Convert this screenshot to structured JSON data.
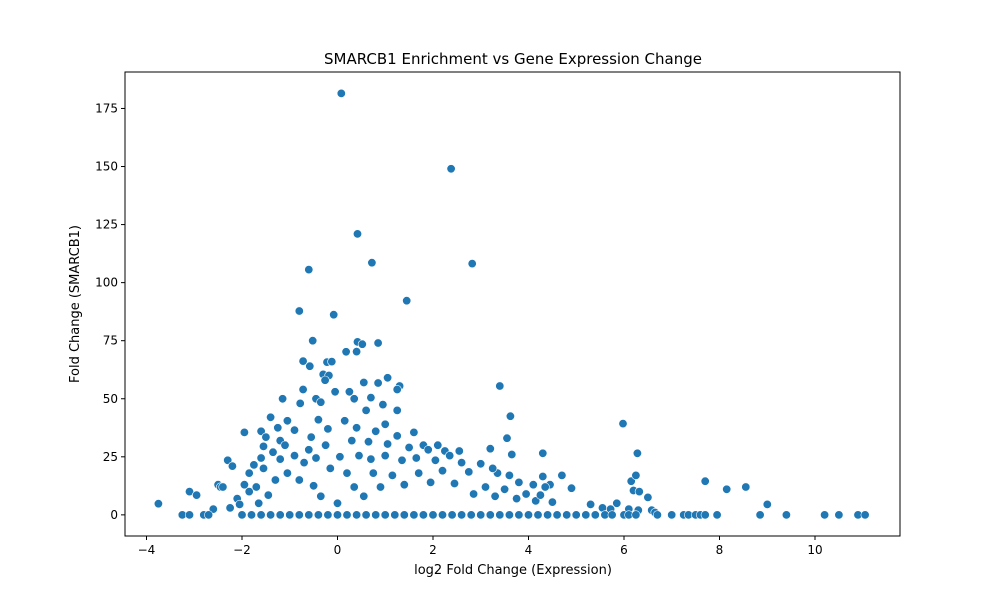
{
  "chart_data": {
    "type": "scatter",
    "title": "SMARCB1 Enrichment vs Gene Expression Change",
    "xlabel": "log2 Fold Change (Expression)",
    "ylabel": "Fold Change (SMARCB1)",
    "xlim": [
      -4.45,
      11.78
    ],
    "ylim": [
      -9.1,
      190.7
    ],
    "xticks": [
      -4,
      -2,
      0,
      2,
      4,
      6,
      8,
      10
    ],
    "yticks": [
      0,
      25,
      50,
      75,
      100,
      125,
      150,
      175
    ],
    "xtick_labels": [
      "−4",
      "−2",
      "0",
      "2",
      "4",
      "6",
      "8",
      "10"
    ],
    "ytick_labels": [
      "0",
      "25",
      "50",
      "75",
      "100",
      "125",
      "150",
      "175"
    ],
    "grid": false,
    "color": "#1f77b4",
    "series": [
      {
        "points": [
          [
            0.08,
            181.5
          ],
          [
            2.38,
            149.0
          ],
          [
            0.42,
            121.0
          ],
          [
            0.72,
            108.6
          ],
          [
            2.82,
            108.2
          ],
          [
            -0.6,
            105.6
          ],
          [
            1.45,
            92.2
          ],
          [
            -0.8,
            87.8
          ],
          [
            -0.08,
            86.2
          ],
          [
            -0.52,
            75.0
          ],
          [
            0.42,
            74.5
          ],
          [
            0.52,
            73.5
          ],
          [
            0.85,
            74.0
          ],
          [
            0.18,
            70.2
          ],
          [
            0.4,
            70.3
          ],
          [
            -0.72,
            66.2
          ],
          [
            -0.22,
            65.8
          ],
          [
            -0.58,
            64.0
          ],
          [
            -0.12,
            66.0
          ],
          [
            -0.3,
            60.5
          ],
          [
            -0.18,
            60.0
          ],
          [
            -0.26,
            58.0
          ],
          [
            0.55,
            57.0
          ],
          [
            0.85,
            56.8
          ],
          [
            1.3,
            55.5
          ],
          [
            1.25,
            54.0
          ],
          [
            3.4,
            55.5
          ],
          [
            -0.72,
            54.0
          ],
          [
            0.25,
            53.0
          ],
          [
            -0.05,
            53.0
          ],
          [
            0.35,
            50.0
          ],
          [
            0.7,
            50.5
          ],
          [
            1.05,
            59.0
          ],
          [
            -0.45,
            50.0
          ],
          [
            -1.15,
            50.0
          ],
          [
            -0.78,
            48.0
          ],
          [
            -0.35,
            48.5
          ],
          [
            0.95,
            47.5
          ],
          [
            0.6,
            45.0
          ],
          [
            1.25,
            45.0
          ],
          [
            3.62,
            42.5
          ],
          [
            -1.4,
            42.0
          ],
          [
            -1.05,
            40.5
          ],
          [
            -0.4,
            41.0
          ],
          [
            0.15,
            40.5
          ],
          [
            5.98,
            39.3
          ],
          [
            1.0,
            39.0
          ],
          [
            -1.25,
            37.5
          ],
          [
            -0.9,
            36.5
          ],
          [
            -1.6,
            36.0
          ],
          [
            -1.95,
            35.5
          ],
          [
            -0.2,
            37.0
          ],
          [
            0.4,
            37.5
          ],
          [
            0.8,
            36.0
          ],
          [
            1.6,
            35.5
          ],
          [
            1.25,
            34.0
          ],
          [
            1.8,
            30.0
          ],
          [
            2.1,
            30.0
          ],
          [
            3.55,
            33.0
          ],
          [
            3.2,
            28.5
          ],
          [
            6.28,
            26.5
          ],
          [
            -1.5,
            33.5
          ],
          [
            -1.2,
            32.0
          ],
          [
            -0.55,
            33.5
          ],
          [
            -1.1,
            30.0
          ],
          [
            -1.55,
            29.5
          ],
          [
            -1.35,
            27.0
          ],
          [
            -0.6,
            28.0
          ],
          [
            -0.25,
            30.0
          ],
          [
            0.3,
            32.0
          ],
          [
            0.65,
            31.5
          ],
          [
            1.05,
            30.5
          ],
          [
            1.5,
            29.0
          ],
          [
            1.9,
            28.0
          ],
          [
            2.25,
            27.5
          ],
          [
            2.55,
            27.5
          ],
          [
            3.65,
            26.0
          ],
          [
            4.3,
            26.5
          ],
          [
            -2.3,
            23.5
          ],
          [
            -2.2,
            21.0
          ],
          [
            -1.75,
            21.5
          ],
          [
            -1.6,
            24.5
          ],
          [
            -1.55,
            20.0
          ],
          [
            -1.85,
            18.0
          ],
          [
            -1.95,
            13.0
          ],
          [
            -1.2,
            24.0
          ],
          [
            -0.9,
            25.5
          ],
          [
            -0.7,
            22.5
          ],
          [
            -0.45,
            24.5
          ],
          [
            0.05,
            25.0
          ],
          [
            0.45,
            25.5
          ],
          [
            0.7,
            24.0
          ],
          [
            1.0,
            25.5
          ],
          [
            1.35,
            23.5
          ],
          [
            1.65,
            24.5
          ],
          [
            2.05,
            23.5
          ],
          [
            2.35,
            25.5
          ],
          [
            2.6,
            22.5
          ],
          [
            3.0,
            22.0
          ],
          [
            3.35,
            18.0
          ],
          [
            3.25,
            20.0
          ],
          [
            3.6,
            17.0
          ],
          [
            3.8,
            14.0
          ],
          [
            4.3,
            16.5
          ],
          [
            4.7,
            17.0
          ],
          [
            4.9,
            11.5
          ],
          [
            4.45,
            13.0
          ],
          [
            4.1,
            13.0
          ],
          [
            4.35,
            12.0
          ],
          [
            6.15,
            14.5
          ],
          [
            6.25,
            17.0
          ],
          [
            6.2,
            10.5
          ],
          [
            6.32,
            10.0
          ],
          [
            6.5,
            7.5
          ],
          [
            6.58,
            2.0
          ],
          [
            6.65,
            1.0
          ],
          [
            -3.75,
            4.8
          ],
          [
            -3.1,
            10.0
          ],
          [
            -2.95,
            8.5
          ],
          [
            -2.5,
            13.0
          ],
          [
            -2.45,
            12.0
          ],
          [
            -2.4,
            12.0
          ],
          [
            -2.1,
            7.0
          ],
          [
            -2.25,
            3.0
          ],
          [
            -2.6,
            2.5
          ],
          [
            -2.05,
            4.5
          ],
          [
            -1.85,
            10.0
          ],
          [
            -1.7,
            12.0
          ],
          [
            -1.45,
            8.5
          ],
          [
            -1.65,
            5.0
          ],
          [
            -1.3,
            15.0
          ],
          [
            -1.05,
            18.0
          ],
          [
            -0.8,
            15.0
          ],
          [
            -0.5,
            12.5
          ],
          [
            -0.35,
            8.0
          ],
          [
            -0.15,
            20.0
          ],
          [
            0.0,
            5.0
          ],
          [
            0.2,
            18.0
          ],
          [
            0.35,
            12.0
          ],
          [
            0.55,
            8.0
          ],
          [
            0.75,
            18.0
          ],
          [
            0.9,
            12.0
          ],
          [
            1.15,
            17.0
          ],
          [
            1.4,
            13.0
          ],
          [
            1.7,
            18.0
          ],
          [
            1.95,
            14.0
          ],
          [
            2.2,
            19.0
          ],
          [
            2.45,
            13.5
          ],
          [
            2.75,
            18.5
          ],
          [
            2.85,
            9.0
          ],
          [
            3.1,
            12.0
          ],
          [
            3.3,
            8.0
          ],
          [
            3.5,
            11.0
          ],
          [
            3.75,
            7.0
          ],
          [
            3.95,
            9.0
          ],
          [
            4.15,
            6.0
          ],
          [
            4.25,
            8.5
          ],
          [
            4.5,
            5.5
          ],
          [
            5.3,
            4.5
          ],
          [
            5.55,
            3.0
          ],
          [
            5.72,
            2.5
          ],
          [
            5.85,
            5.0
          ],
          [
            6.1,
            2.5
          ],
          [
            6.3,
            2.0
          ],
          [
            7.7,
            14.5
          ],
          [
            8.15,
            11.0
          ],
          [
            8.55,
            12.0
          ],
          [
            9.0,
            4.5
          ],
          [
            -3.25,
            0.0
          ],
          [
            -3.1,
            0.0
          ],
          [
            -2.8,
            0.0
          ],
          [
            -2.7,
            0.0
          ],
          [
            -2.0,
            0.0
          ],
          [
            -1.8,
            0.0
          ],
          [
            -1.6,
            0.0
          ],
          [
            -1.4,
            0.0
          ],
          [
            -1.2,
            0.0
          ],
          [
            -1.0,
            0.0
          ],
          [
            -0.8,
            0.0
          ],
          [
            -0.6,
            0.0
          ],
          [
            -0.4,
            0.0
          ],
          [
            -0.2,
            0.0
          ],
          [
            0.0,
            0.0
          ],
          [
            0.2,
            0.0
          ],
          [
            0.4,
            0.0
          ],
          [
            0.6,
            0.0
          ],
          [
            0.8,
            0.0
          ],
          [
            1.0,
            0.0
          ],
          [
            1.2,
            0.0
          ],
          [
            1.4,
            0.0
          ],
          [
            1.6,
            0.0
          ],
          [
            1.8,
            0.0
          ],
          [
            2.0,
            0.0
          ],
          [
            2.2,
            0.0
          ],
          [
            2.4,
            0.0
          ],
          [
            2.6,
            0.0
          ],
          [
            2.8,
            0.0
          ],
          [
            3.0,
            0.0
          ],
          [
            3.2,
            0.0
          ],
          [
            3.4,
            0.0
          ],
          [
            3.6,
            0.0
          ],
          [
            3.8,
            0.0
          ],
          [
            4.0,
            0.0
          ],
          [
            4.2,
            0.0
          ],
          [
            4.4,
            0.0
          ],
          [
            4.6,
            0.0
          ],
          [
            4.8,
            0.0
          ],
          [
            5.0,
            0.0
          ],
          [
            5.2,
            0.0
          ],
          [
            5.4,
            0.0
          ],
          [
            5.6,
            0.0
          ],
          [
            5.75,
            0.0
          ],
          [
            6.0,
            0.0
          ],
          [
            6.1,
            0.0
          ],
          [
            6.25,
            0.0
          ],
          [
            6.7,
            0.0
          ],
          [
            7.0,
            0.0
          ],
          [
            7.25,
            0.0
          ],
          [
            7.35,
            0.0
          ],
          [
            7.5,
            0.0
          ],
          [
            7.6,
            0.0
          ],
          [
            7.7,
            0.0
          ],
          [
            7.95,
            0.0
          ],
          [
            8.85,
            0.0
          ],
          [
            9.4,
            0.0
          ],
          [
            10.2,
            0.0
          ],
          [
            10.5,
            0.0
          ],
          [
            10.9,
            0.0
          ],
          [
            11.05,
            0.0
          ]
        ]
      }
    ]
  }
}
